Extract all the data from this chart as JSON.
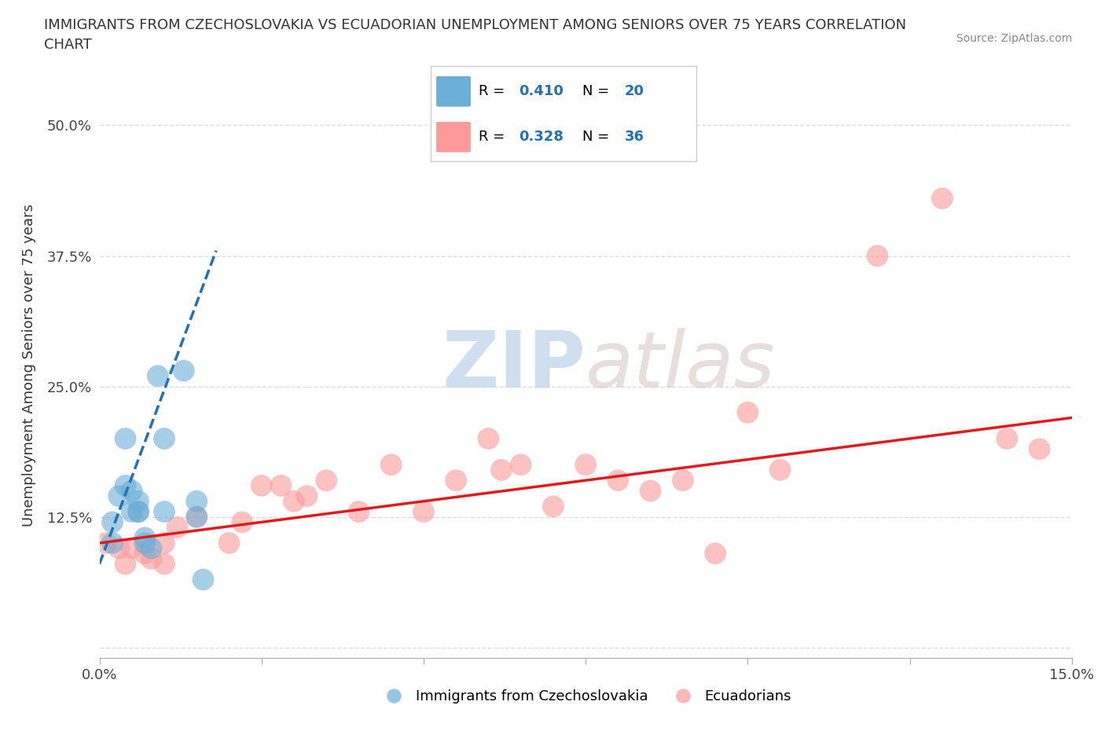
{
  "title_line1": "IMMIGRANTS FROM CZECHOSLOVAKIA VS ECUADORIAN UNEMPLOYMENT AMONG SENIORS OVER 75 YEARS CORRELATION",
  "title_line2": "CHART",
  "source": "Source: ZipAtlas.com",
  "ylabel": "Unemployment Among Seniors over 75 years",
  "xlim": [
    0.0,
    0.15
  ],
  "ylim": [
    -0.01,
    0.55
  ],
  "x_ticks": [
    0.0,
    0.025,
    0.05,
    0.075,
    0.1,
    0.125,
    0.15
  ],
  "y_ticks": [
    0.0,
    0.125,
    0.25,
    0.375,
    0.5
  ],
  "color_blue": "#6baed6",
  "color_pink": "#fb9a99",
  "color_blue_line": "#2171b5",
  "color_pink_line": "#e31a1c",
  "watermark_zip": "ZIP",
  "watermark_atlas": "atlas",
  "blue_scatter_x": [
    0.002,
    0.002,
    0.003,
    0.004,
    0.004,
    0.005,
    0.005,
    0.006,
    0.006,
    0.006,
    0.007,
    0.007,
    0.008,
    0.009,
    0.01,
    0.01,
    0.013,
    0.015,
    0.015,
    0.016
  ],
  "blue_scatter_y": [
    0.1,
    0.12,
    0.145,
    0.2,
    0.155,
    0.13,
    0.15,
    0.13,
    0.14,
    0.13,
    0.1,
    0.105,
    0.095,
    0.26,
    0.2,
    0.13,
    0.265,
    0.125,
    0.14,
    0.065
  ],
  "pink_scatter_x": [
    0.001,
    0.003,
    0.004,
    0.005,
    0.007,
    0.008,
    0.01,
    0.01,
    0.012,
    0.015,
    0.02,
    0.022,
    0.025,
    0.028,
    0.03,
    0.032,
    0.035,
    0.04,
    0.045,
    0.05,
    0.055,
    0.06,
    0.062,
    0.065,
    0.07,
    0.075,
    0.08,
    0.085,
    0.09,
    0.095,
    0.1,
    0.105,
    0.12,
    0.13,
    0.14,
    0.145
  ],
  "pink_scatter_y": [
    0.1,
    0.095,
    0.08,
    0.095,
    0.09,
    0.085,
    0.1,
    0.08,
    0.115,
    0.125,
    0.1,
    0.12,
    0.155,
    0.155,
    0.14,
    0.145,
    0.16,
    0.13,
    0.175,
    0.13,
    0.16,
    0.2,
    0.17,
    0.175,
    0.135,
    0.175,
    0.16,
    0.15,
    0.16,
    0.09,
    0.225,
    0.17,
    0.375,
    0.43,
    0.2,
    0.19
  ],
  "blue_trend_x": [
    0.0,
    0.018
  ],
  "blue_trend_y": [
    0.08,
    0.38
  ],
  "pink_trend_x": [
    0.0,
    0.15
  ],
  "pink_trend_y": [
    0.1,
    0.22
  ],
  "legend_r1_val": "0.410",
  "legend_r2_val": "0.328",
  "legend_n1": "20",
  "legend_n2": "36",
  "label_blue": "Immigrants from Czechoslovakia",
  "label_pink": "Ecuadorians"
}
